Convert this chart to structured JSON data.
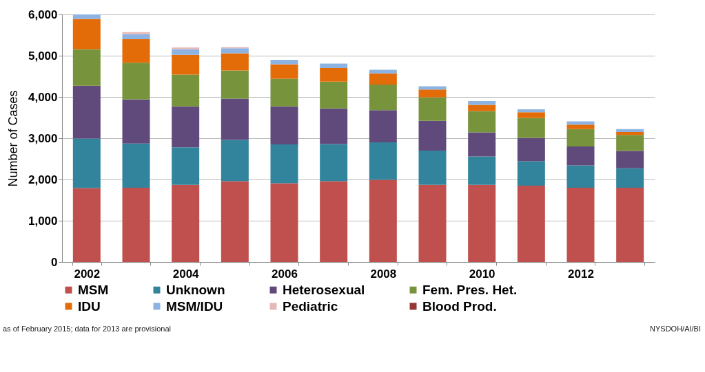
{
  "chart_data": {
    "type": "bar",
    "stacked": true,
    "ylabel": "Number of Cases",
    "categories": [
      "2002",
      null,
      "2004",
      null,
      "2006",
      null,
      "2008",
      null,
      "2010",
      null,
      "2012",
      null
    ],
    "ylim": [
      0,
      6000
    ],
    "yticks": [
      {
        "value": 0,
        "label": "0"
      },
      {
        "value": 1000,
        "label": "1,000"
      },
      {
        "value": 2000,
        "label": "2,000"
      },
      {
        "value": 3000,
        "label": "3,000"
      },
      {
        "value": 4000,
        "label": "4,000"
      },
      {
        "value": 5000,
        "label": "5,000"
      },
      {
        "value": 6000,
        "label": "6,000"
      }
    ],
    "grid": "y",
    "legend": "bottom",
    "series": [
      {
        "name": "MSM",
        "color": "#c0504d",
        "values": [
          1790,
          1800,
          1870,
          1960,
          1910,
          1960,
          1990,
          1870,
          1870,
          1850,
          1800,
          1800
        ]
      },
      {
        "name": "Unknown",
        "color": "#31849b",
        "values": [
          1200,
          1070,
          910,
          1000,
          940,
          900,
          910,
          830,
          690,
          590,
          540,
          470
        ]
      },
      {
        "name": "Heterosexual",
        "color": "#604a7b",
        "values": [
          1280,
          1070,
          990,
          1000,
          920,
          860,
          780,
          720,
          580,
          570,
          460,
          420
        ]
      },
      {
        "name": "Fem. Pres. Het.",
        "color": "#77933c",
        "values": [
          890,
          890,
          770,
          680,
          670,
          650,
          620,
          570,
          520,
          480,
          420,
          390
        ]
      },
      {
        "name": "IDU",
        "color": "#e36c09",
        "values": [
          730,
          570,
          480,
          420,
          350,
          330,
          270,
          190,
          150,
          140,
          110,
          70
        ]
      },
      {
        "name": "MSM/IDU",
        "color": "#8db3e2",
        "values": [
          110,
          120,
          140,
          120,
          110,
          110,
          90,
          80,
          90,
          70,
          80,
          70
        ]
      },
      {
        "name": "Pediatric",
        "color": "#e6b9b8",
        "values": [
          null,
          50,
          40,
          30,
          null,
          null,
          null,
          null,
          null,
          null,
          null,
          null
        ]
      },
      {
        "name": "Blood Prod.",
        "color": "#953735",
        "values": [
          null,
          null,
          null,
          null,
          null,
          null,
          null,
          null,
          null,
          null,
          null,
          null
        ]
      }
    ],
    "annotations": [
      "as of February 2015; data for 2013 are provisional",
      "NYSDOH/AI/BI"
    ]
  }
}
